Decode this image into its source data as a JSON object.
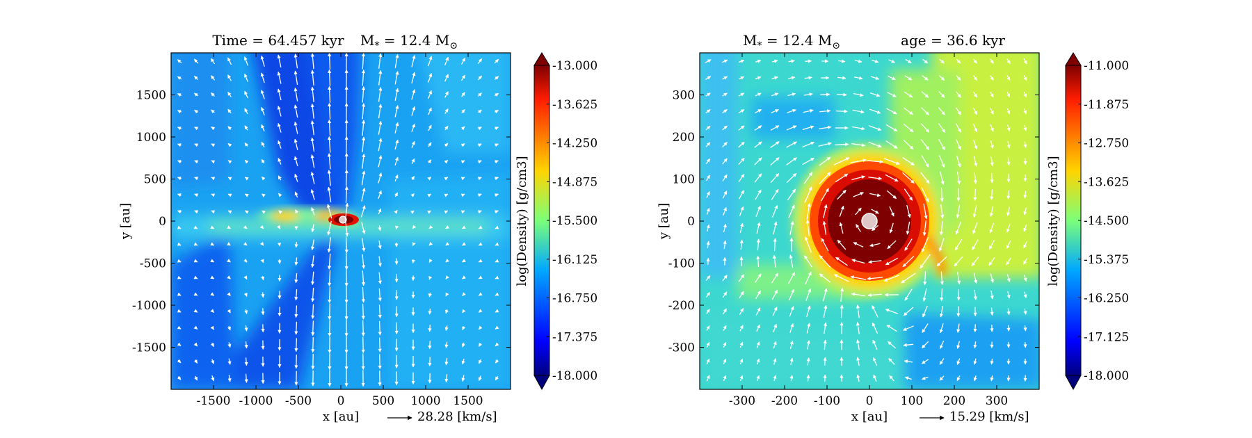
{
  "chart_data": [
    {
      "type": "heatmap",
      "title": "Time = 64.457 kyr    M$_*$ = 12.4 M$_\\odot$",
      "title_parts": {
        "left": "Time = 64.457 kyr",
        "mass_prefix": "M",
        "mass_sub": "*",
        "mass_value": " = 12.4 M",
        "mass_sun": "⊙"
      },
      "xlabel": "x [au]",
      "ylabel": "y [au]",
      "xlim": [
        -2000,
        2000
      ],
      "ylim": [
        -2000,
        2000
      ],
      "xticks": [
        -1500,
        -1000,
        -500,
        0,
        500,
        1000,
        1500
      ],
      "yticks": [
        -1500,
        -1000,
        -500,
        0,
        500,
        1000,
        1500
      ],
      "xtick_labels": [
        "-1500",
        "-1000",
        "-500",
        "0",
        "500",
        "1000",
        "1500"
      ],
      "ytick_labels": [
        "-1500",
        "-1000",
        "-500",
        "0",
        "500",
        "1000",
        "1500"
      ],
      "colorbar": {
        "label": "log(Density) [g/cm3]",
        "range": [
          -18.0,
          -13.0
        ],
        "extend": "both",
        "ticks": [
          -13.0,
          -13.625,
          -14.25,
          -14.875,
          -15.5,
          -16.125,
          -16.75,
          -17.375,
          -18.0
        ],
        "tick_labels": [
          "-13.000",
          "-13.625",
          "-14.250",
          "-14.875",
          "-15.500",
          "-16.125",
          "-16.750",
          "-17.375",
          "-18.000"
        ]
      },
      "velocity_key": {
        "value": 28.28,
        "label": "28.28 [km/s]"
      },
      "field": "bipolar outflow cavity along y with dense equatorial disk along y=0 (log density ≈ -16.1 background, ≈ -17.4 cavity, ≈ -15.3 disk, ≈ -13 core)",
      "colormap": "jet",
      "sink_color": "#e0c8c8"
    },
    {
      "type": "heatmap",
      "title": "M$_*$ = 12.4 M$_\\odot$     age = 36.6 kyr",
      "title_parts": {
        "mass_prefix": "M",
        "mass_sub": "*",
        "mass_value": " = 12.4 M",
        "mass_sun": "⊙",
        "right": "age = 36.6 kyr"
      },
      "xlabel": "x [au]",
      "ylabel": "y [au]",
      "xlim": [
        -400,
        400
      ],
      "ylim": [
        -400,
        400
      ],
      "xticks": [
        -300,
        -200,
        -100,
        0,
        100,
        200,
        300
      ],
      "yticks": [
        -300,
        -200,
        -100,
        0,
        100,
        200,
        300
      ],
      "xtick_labels": [
        "-300",
        "-200",
        "-100",
        "0",
        "100",
        "200",
        "300"
      ],
      "ytick_labels": [
        "-300",
        "-200",
        "-100",
        "0",
        "100",
        "200",
        "300"
      ],
      "colorbar": {
        "label": "log(Density) [g/cm3]",
        "range": [
          -18.0,
          -11.0
        ],
        "extend": "both",
        "ticks": [
          -11.0,
          -11.875,
          -12.75,
          -13.625,
          -14.5,
          -15.375,
          -16.25,
          -17.125,
          -18.0
        ],
        "tick_labels": [
          "-11.000",
          "-11.875",
          "-12.750",
          "-13.625",
          "-14.500",
          "-15.375",
          "-16.250",
          "-17.125",
          "-18.000"
        ]
      },
      "velocity_key": {
        "value": 15.29,
        "label": "15.29 [km/s]"
      },
      "field": "rotating dense disk centered at origin (log density up to -11) with spiral arm toward (+150,-100); background ≈ -14.5 to -15.5",
      "colormap": "jet",
      "sink_color": "#e0c8c8"
    }
  ]
}
